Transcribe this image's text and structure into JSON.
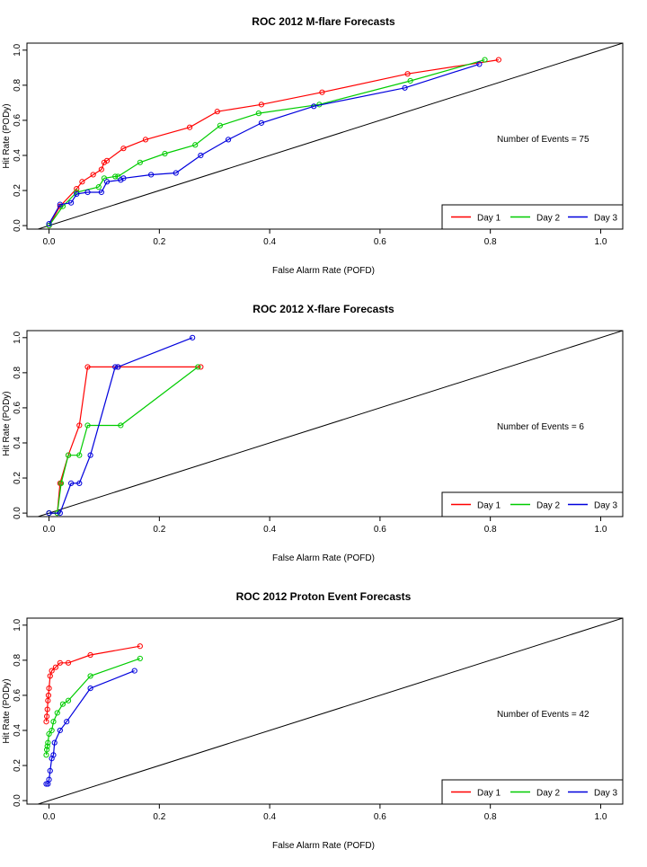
{
  "chart_data": [
    {
      "type": "line",
      "title": "ROC  2012 M-flare Forecasts",
      "xlabel": "False Alarm Rate (POFD)",
      "ylabel": "Hit Rate (PODy)",
      "xlim": [
        -0.04,
        1.04
      ],
      "ylim": [
        -0.02,
        1.04
      ],
      "xticks": [
        "0.0",
        "0.2",
        "0.4",
        "0.6",
        "0.8",
        "1.0"
      ],
      "yticks": [
        "0.0",
        "0.2",
        "0.4",
        "0.6",
        "0.8",
        "1.0"
      ],
      "annotation": "Number of Events =  75",
      "legend_position": "bottom-right",
      "series": [
        {
          "name": "Day 1",
          "color": "#ff0000",
          "points": [
            [
              0.0,
              0.0
            ],
            [
              0.02,
              0.11
            ],
            [
              0.05,
              0.21
            ],
            [
              0.06,
              0.25
            ],
            [
              0.08,
              0.29
            ],
            [
              0.095,
              0.32
            ],
            [
              0.1,
              0.36
            ],
            [
              0.105,
              0.37
            ],
            [
              0.135,
              0.44
            ],
            [
              0.175,
              0.49
            ],
            [
              0.255,
              0.56
            ],
            [
              0.305,
              0.65
            ],
            [
              0.385,
              0.69
            ],
            [
              0.495,
              0.76
            ],
            [
              0.65,
              0.865
            ],
            [
              0.815,
              0.945
            ]
          ]
        },
        {
          "name": "Day 2",
          "color": "#00cc00",
          "points": [
            [
              0.0,
              0.0
            ],
            [
              0.025,
              0.11
            ],
            [
              0.05,
              0.19
            ],
            [
              0.09,
              0.22
            ],
            [
              0.1,
              0.27
            ],
            [
              0.12,
              0.28
            ],
            [
              0.125,
              0.28
            ],
            [
              0.165,
              0.36
            ],
            [
              0.21,
              0.41
            ],
            [
              0.265,
              0.46
            ],
            [
              0.31,
              0.57
            ],
            [
              0.38,
              0.64
            ],
            [
              0.49,
              0.69
            ],
            [
              0.655,
              0.825
            ],
            [
              0.79,
              0.945
            ]
          ]
        },
        {
          "name": "Day 3",
          "color": "#0000dd",
          "points": [
            [
              0.0,
              0.01
            ],
            [
              0.02,
              0.12
            ],
            [
              0.04,
              0.13
            ],
            [
              0.05,
              0.18
            ],
            [
              0.07,
              0.19
            ],
            [
              0.095,
              0.19
            ],
            [
              0.105,
              0.25
            ],
            [
              0.13,
              0.26
            ],
            [
              0.135,
              0.27
            ],
            [
              0.185,
              0.29
            ],
            [
              0.23,
              0.3
            ],
            [
              0.275,
              0.4
            ],
            [
              0.325,
              0.49
            ],
            [
              0.385,
              0.585
            ],
            [
              0.48,
              0.68
            ],
            [
              0.645,
              0.785
            ],
            [
              0.78,
              0.92
            ]
          ]
        }
      ]
    },
    {
      "type": "line",
      "title": "ROC  2012 X-flare Forecasts",
      "xlabel": "False Alarm Rate (POFD)",
      "ylabel": "Hit Rate (PODy)",
      "xlim": [
        -0.04,
        1.04
      ],
      "ylim": [
        -0.02,
        1.04
      ],
      "xticks": [
        "0.0",
        "0.2",
        "0.4",
        "0.6",
        "0.8",
        "1.0"
      ],
      "yticks": [
        "0.0",
        "0.2",
        "0.4",
        "0.6",
        "0.8",
        "1.0"
      ],
      "annotation": "Number of Events =  6",
      "legend_position": "bottom-right",
      "series": [
        {
          "name": "Day 1",
          "color": "#ff0000",
          "points": [
            [
              0.0,
              0.0
            ],
            [
              0.015,
              0.0
            ],
            [
              0.02,
              0.17
            ],
            [
              0.035,
              0.33
            ],
            [
              0.055,
              0.5
            ],
            [
              0.07,
              0.833
            ],
            [
              0.125,
              0.833
            ],
            [
              0.275,
              0.833
            ]
          ]
        },
        {
          "name": "Day 2",
          "color": "#00cc00",
          "points": [
            [
              0.0,
              0.0
            ],
            [
              0.015,
              0.0
            ],
            [
              0.022,
              0.17
            ],
            [
              0.035,
              0.33
            ],
            [
              0.055,
              0.33
            ],
            [
              0.07,
              0.5
            ],
            [
              0.13,
              0.5
            ],
            [
              0.27,
              0.833
            ]
          ]
        },
        {
          "name": "Day 3",
          "color": "#0000dd",
          "points": [
            [
              0.0,
              0.0
            ],
            [
              0.02,
              0.0
            ],
            [
              0.04,
              0.17
            ],
            [
              0.055,
              0.17
            ],
            [
              0.075,
              0.33
            ],
            [
              0.12,
              0.833
            ],
            [
              0.125,
              0.833
            ],
            [
              0.26,
              1.0
            ]
          ]
        }
      ]
    },
    {
      "type": "line",
      "title": "ROC  2012 Proton Event Forecasts",
      "xlabel": "False Alarm Rate (POFD)",
      "ylabel": "Hit Rate (PODy)",
      "xlim": [
        -0.04,
        1.04
      ],
      "ylim": [
        -0.02,
        1.04
      ],
      "xticks": [
        "0.0",
        "0.2",
        "0.4",
        "0.6",
        "0.8",
        "1.0"
      ],
      "yticks": [
        "0.0",
        "0.2",
        "0.4",
        "0.6",
        "0.8",
        "1.0"
      ],
      "annotation": "Number of Events =  42",
      "legend_position": "bottom-right",
      "series": [
        {
          "name": "Day 1",
          "color": "#ff0000",
          "points": [
            [
              -0.005,
              0.45
            ],
            [
              -0.004,
              0.48
            ],
            [
              -0.003,
              0.52
            ],
            [
              -0.002,
              0.57
            ],
            [
              -0.001,
              0.6
            ],
            [
              0.0,
              0.64
            ],
            [
              0.002,
              0.71
            ],
            [
              0.005,
              0.74
            ],
            [
              0.012,
              0.76
            ],
            [
              0.02,
              0.785
            ],
            [
              0.035,
              0.785
            ],
            [
              0.075,
              0.83
            ],
            [
              0.165,
              0.88
            ]
          ]
        },
        {
          "name": "Day 2",
          "color": "#00cc00",
          "points": [
            [
              -0.005,
              0.26
            ],
            [
              -0.004,
              0.29
            ],
            [
              -0.003,
              0.31
            ],
            [
              -0.002,
              0.33
            ],
            [
              0.0,
              0.38
            ],
            [
              0.005,
              0.4
            ],
            [
              0.008,
              0.45
            ],
            [
              0.015,
              0.5
            ],
            [
              0.025,
              0.55
            ],
            [
              0.035,
              0.57
            ],
            [
              0.075,
              0.71
            ],
            [
              0.165,
              0.81
            ]
          ]
        },
        {
          "name": "Day 3",
          "color": "#0000dd",
          "points": [
            [
              -0.005,
              0.095
            ],
            [
              -0.002,
              0.095
            ],
            [
              0.0,
              0.12
            ],
            [
              0.002,
              0.17
            ],
            [
              0.005,
              0.24
            ],
            [
              0.008,
              0.26
            ],
            [
              0.01,
              0.33
            ],
            [
              0.02,
              0.4
            ],
            [
              0.032,
              0.45
            ],
            [
              0.075,
              0.64
            ],
            [
              0.155,
              0.74
            ]
          ]
        }
      ]
    }
  ]
}
